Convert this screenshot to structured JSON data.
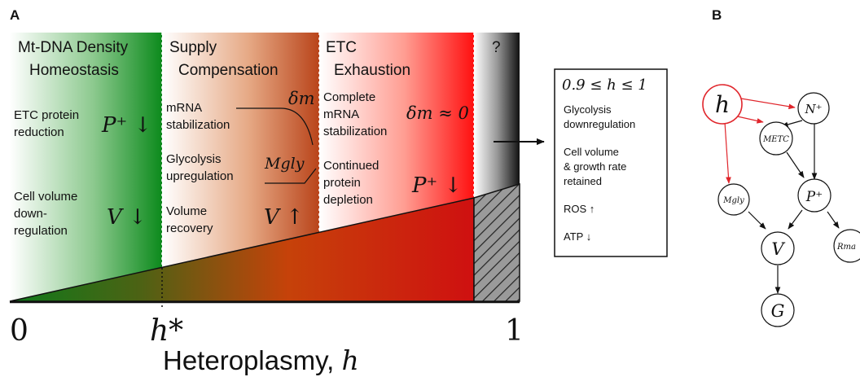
{
  "panel_a": {
    "label": "A",
    "regions": [
      {
        "title_line1": "Mt-DNA Density",
        "title_line2": "Homeostasis"
      },
      {
        "title_line1": "Supply",
        "title_line2": "Compensation"
      },
      {
        "title_line1": "ETC",
        "title_line2": "Exhaustion"
      },
      {
        "title_line1": "?",
        "title_line2": ""
      }
    ],
    "homeostasis": {
      "etc_line1": "ETC protein",
      "etc_line2": "reduction",
      "etc_symbol": "P⁺ ↓",
      "vol_line1": "Cell volume",
      "vol_line2": "down-",
      "vol_line3": "regulation",
      "vol_symbol": "V ↓"
    },
    "compensation": {
      "mrna_line1": "mRNA",
      "mrna_line2": "stabilization",
      "mrna_symbol": "δm",
      "gly_line1": "Glycolysis",
      "gly_line2": "upregulation",
      "gly_symbol": "Mgly",
      "vol_line1": "Volume",
      "vol_line2": "recovery",
      "vol_symbol": "V ↑"
    },
    "exhaustion": {
      "mrna_line1": "Complete",
      "mrna_line2": "mRNA",
      "mrna_line3": "stabilization",
      "mrna_symbol": "δm ≈ 0",
      "prot_line1": "Continued",
      "prot_line2": "protein",
      "prot_line3": "depletion",
      "prot_symbol": "P⁺ ↓"
    },
    "box": {
      "header": "0.9 ≤ h ≤ 1",
      "item1_line1": "Glycolysis",
      "item1_line2": "downregulation",
      "item2_line1": "Cell volume",
      "item2_line2": "& growth rate",
      "item2_line3": "retained",
      "item3": "ROS ↑",
      "item4": "ATP ↓"
    },
    "axis": {
      "tick_zero": "0",
      "tick_hstar": "h*",
      "tick_one": "1",
      "xlabel_text": "Heteroplasmy, ",
      "xlabel_symbol": "h"
    }
  },
  "panel_b": {
    "label": "B",
    "nodes": {
      "h": "h",
      "nplus": "N⁺",
      "metc": "METC",
      "pplus": "P⁺",
      "mgly": "Mgly",
      "v": "V",
      "rma": "Rma",
      "g": "G"
    }
  },
  "colors": {
    "green": "#0f8a1e",
    "orange": "#c84a1a",
    "red": "#ff1a1a",
    "causal_red": "#e0252b"
  }
}
